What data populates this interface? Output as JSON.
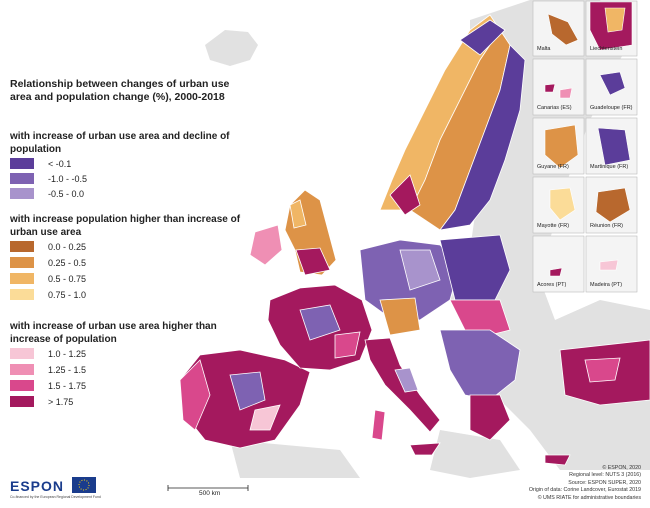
{
  "legend": {
    "title": "Relationship between changes of urban use area and population change (%), 2000-2018",
    "groups": [
      {
        "title": "with increase of urban use area and decline of population",
        "items": [
          {
            "label": "< -0.1",
            "color": "#5b3d9a"
          },
          {
            "label": "-1.0 - -0.5",
            "color": "#7e62b2"
          },
          {
            "label": "-0.5 - 0.0",
            "color": "#a893cc"
          }
        ]
      },
      {
        "title": "with increase population higher than increase of urban use area",
        "items": [
          {
            "label": "0.0 - 0.25",
            "color": "#b8682e"
          },
          {
            "label": "0.25 - 0.5",
            "color": "#dd9347"
          },
          {
            "label": "0.5 - 0.75",
            "color": "#f0b665"
          },
          {
            "label": "0.75 - 1.0",
            "color": "#fbdc98"
          }
        ]
      },
      {
        "title": "with increase of urban use area higher than increase of population",
        "items": [
          {
            "label": "1.0 - 1.25",
            "color": "#f7c6d6"
          },
          {
            "label": "1.25 - 1.5",
            "color": "#ef8fb4"
          },
          {
            "label": "1.5 - 1.75",
            "color": "#d9488c"
          },
          {
            "label": "> 1.75",
            "color": "#a4195e"
          }
        ]
      }
    ]
  },
  "insets": [
    "Malta",
    "Liechtenstein",
    "Canarias (ES)",
    "Guadeloupe (FR)",
    "Guyane (FR)",
    "Martinique (FR)",
    "Mayotte (FR)",
    "Réunion (FR)",
    "Acores (PT)",
    "Madeira (PT)"
  ],
  "scale_bar": "500 km",
  "logo": {
    "text": "ESPON",
    "subtitle": "Co-financed by the European Regional Development Fund"
  },
  "credits": [
    "© ESPON, 2020",
    "Regional level: NUTS 3 (2016)",
    "Source: ESPON SUPER, 2020",
    "Origin of data: Corine Landcover, Eurostat 2019",
    "© UMS RIATE for administrative boundaries"
  ],
  "colors": {
    "sea": "#ffffff",
    "non_eu_land": "#e1e1e1",
    "borders": "#ffffff"
  }
}
